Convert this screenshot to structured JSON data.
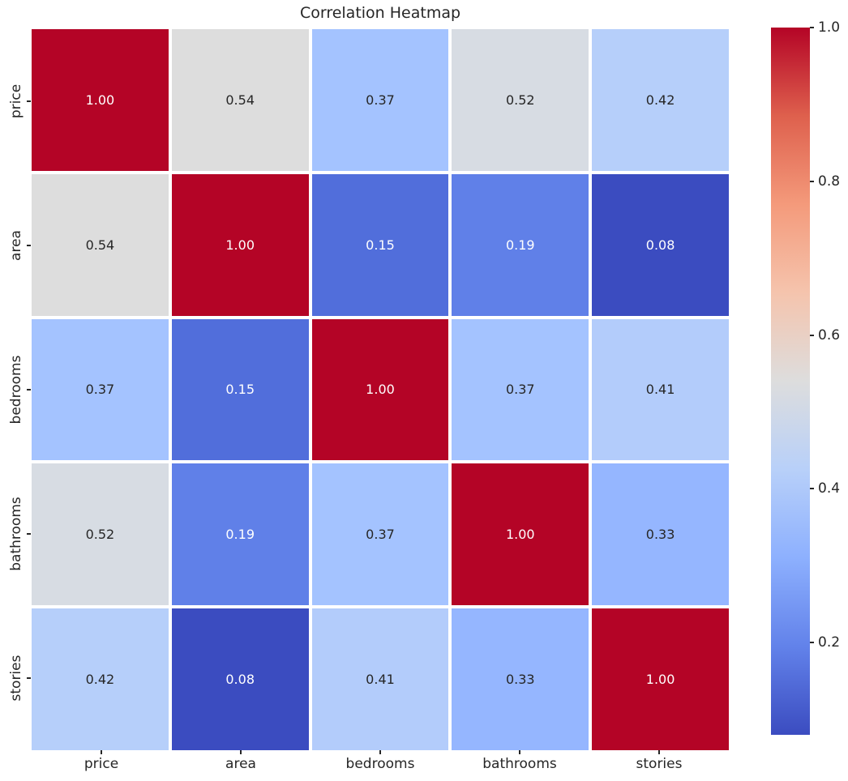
{
  "title": "Correlation Heatmap",
  "chart_data": {
    "type": "heatmap",
    "title": "Correlation Heatmap",
    "x_tick_labels": [
      "price",
      "area",
      "bedrooms",
      "bathrooms",
      "stories"
    ],
    "y_tick_labels": [
      "price",
      "area",
      "bedrooms",
      "bathrooms",
      "stories"
    ],
    "values": [
      [
        1.0,
        0.54,
        0.37,
        0.52,
        0.42
      ],
      [
        0.54,
        1.0,
        0.15,
        0.19,
        0.08
      ],
      [
        0.37,
        0.15,
        1.0,
        0.37,
        0.41
      ],
      [
        0.52,
        0.19,
        0.37,
        1.0,
        0.33
      ],
      [
        0.42,
        0.08,
        0.41,
        0.33,
        1.0
      ]
    ],
    "cell_text": [
      [
        "1.00",
        "0.54",
        "0.37",
        "0.52",
        "0.42"
      ],
      [
        "0.54",
        "1.00",
        "0.15",
        "0.19",
        "0.08"
      ],
      [
        "0.37",
        "0.15",
        "1.00",
        "0.37",
        "0.41"
      ],
      [
        "0.52",
        "0.19",
        "0.37",
        "1.00",
        "0.33"
      ],
      [
        "0.42",
        "0.08",
        "0.41",
        "0.33",
        "1.00"
      ]
    ],
    "colormap": "coolwarm",
    "vmin": 0.08,
    "vmax": 1.0,
    "grid_line_color": "#ffffff",
    "cell_colors": {
      "1.00": "#b40426",
      "0.54": "#dddddd",
      "0.52": "#d7dce3",
      "0.42": "#b6cffa",
      "0.41": "#b3ccfb",
      "0.37": "#a4c3ff",
      "0.33": "#95b6ff",
      "0.19": "#6080e8",
      "0.15": "#516edb",
      "0.08": "#3b4cc0"
    },
    "white_text_cells": [
      "1.00",
      "0.19",
      "0.15",
      "0.08"
    ],
    "annotation_text_dark": "#262626",
    "annotation_text_light": "#ffffff",
    "axis_text_color": "#262626",
    "colorbar": {
      "tick_labels": [
        "1.0",
        "0.8",
        "0.6",
        "0.4",
        "0.2"
      ],
      "tick_values": [
        1.0,
        0.8,
        0.6,
        0.4,
        0.2
      ],
      "gradient_stops": [
        {
          "pos": "0%",
          "color": "#b40426"
        },
        {
          "pos": "12.5%",
          "color": "#de604d"
        },
        {
          "pos": "25%",
          "color": "#f49a7b"
        },
        {
          "pos": "37.5%",
          "color": "#f5c4ad"
        },
        {
          "pos": "50%",
          "color": "#dddddd"
        },
        {
          "pos": "62.5%",
          "color": "#b8d0f9"
        },
        {
          "pos": "75%",
          "color": "#8db0fe"
        },
        {
          "pos": "87.5%",
          "color": "#6282ea"
        },
        {
          "pos": "100%",
          "color": "#3b4cc0"
        }
      ]
    }
  }
}
